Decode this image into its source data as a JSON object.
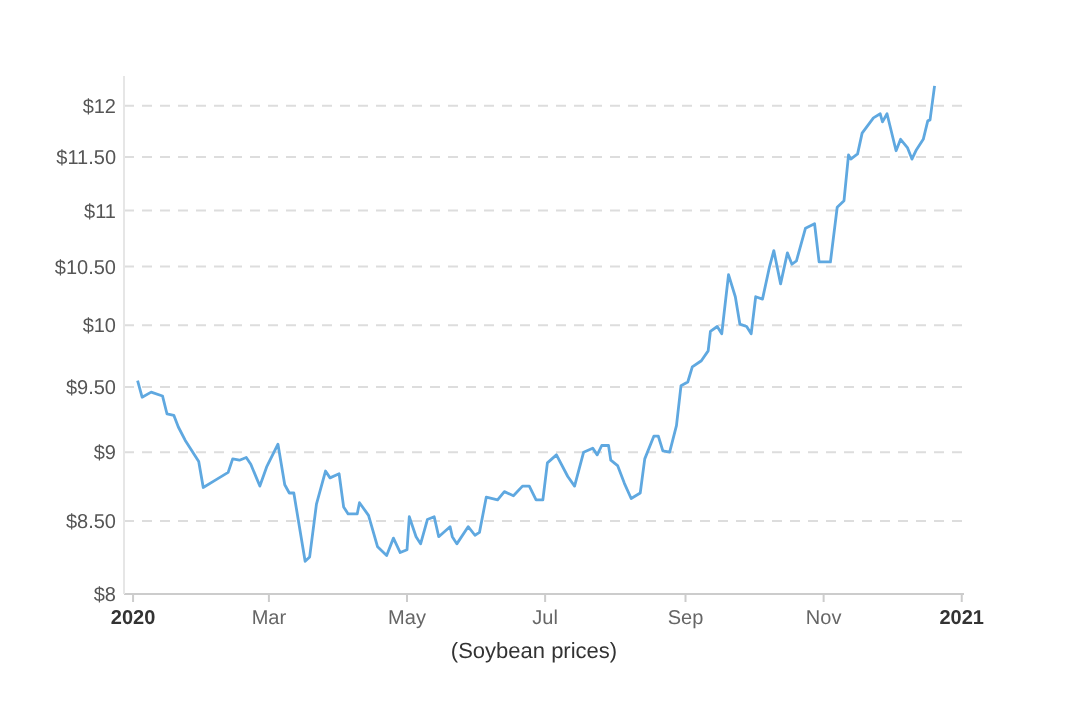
{
  "chart_data": {
    "type": "line",
    "x": [
      "2020-01-03",
      "2020-01-05",
      "2020-01-09",
      "2020-01-14",
      "2020-01-16",
      "2020-01-19",
      "2020-01-21",
      "2020-01-24",
      "2020-01-30",
      "2020-02-01",
      "2020-02-06",
      "2020-02-12",
      "2020-02-14",
      "2020-02-17",
      "2020-02-20",
      "2020-02-22",
      "2020-02-26",
      "2020-02-29",
      "2020-03-05",
      "2020-03-08",
      "2020-03-10",
      "2020-03-12",
      "2020-03-17",
      "2020-03-19",
      "2020-03-22",
      "2020-03-26",
      "2020-03-28",
      "2020-04-01",
      "2020-04-03",
      "2020-04-05",
      "2020-04-09",
      "2020-04-10",
      "2020-04-14",
      "2020-04-18",
      "2020-04-22",
      "2020-04-25",
      "2020-04-28",
      "2020-05-01",
      "2020-05-02",
      "2020-05-05",
      "2020-05-07",
      "2020-05-10",
      "2020-05-13",
      "2020-05-15",
      "2020-05-20",
      "2020-05-21",
      "2020-05-23",
      "2020-05-28",
      "2020-05-31",
      "2020-06-02",
      "2020-06-05",
      "2020-06-10",
      "2020-06-13",
      "2020-06-17",
      "2020-06-21",
      "2020-06-24",
      "2020-06-27",
      "2020-06-30",
      "2020-07-02",
      "2020-07-06",
      "2020-07-11",
      "2020-07-14",
      "2020-07-18",
      "2020-07-22",
      "2020-07-24",
      "2020-07-26",
      "2020-07-29",
      "2020-07-30",
      "2020-08-02",
      "2020-08-05",
      "2020-08-08",
      "2020-08-12",
      "2020-08-14",
      "2020-08-18",
      "2020-08-20",
      "2020-08-22",
      "2020-08-25",
      "2020-08-28",
      "2020-08-30",
      "2020-09-02",
      "2020-09-04",
      "2020-09-08",
      "2020-09-11",
      "2020-09-12",
      "2020-09-15",
      "2020-09-17",
      "2020-09-20",
      "2020-09-23",
      "2020-09-25",
      "2020-09-28",
      "2020-09-30",
      "2020-10-02",
      "2020-10-05",
      "2020-10-08",
      "2020-10-10",
      "2020-10-13",
      "2020-10-16",
      "2020-10-18",
      "2020-10-20",
      "2020-10-24",
      "2020-10-28",
      "2020-10-30",
      "2020-11-02",
      "2020-11-04",
      "2020-11-07",
      "2020-11-10",
      "2020-11-12",
      "2020-11-13",
      "2020-11-16",
      "2020-11-18",
      "2020-11-23",
      "2020-11-26",
      "2020-11-27",
      "2020-11-29",
      "2020-12-03",
      "2020-12-05",
      "2020-12-08",
      "2020-12-10",
      "2020-12-12",
      "2020-12-15",
      "2020-12-17",
      "2020-12-18",
      "2020-12-20"
    ],
    "series": [
      {
        "color": "#5fa8e0",
        "values": [
          9.55,
          9.42,
          9.46,
          9.43,
          9.29,
          9.28,
          9.19,
          9.09,
          8.93,
          8.74,
          8.79,
          8.85,
          8.95,
          8.94,
          8.96,
          8.91,
          8.75,
          8.89,
          9.06,
          8.76,
          8.7,
          8.7,
          8.22,
          8.25,
          8.62,
          8.86,
          8.81,
          8.84,
          8.6,
          8.55,
          8.55,
          8.63,
          8.54,
          8.32,
          8.26,
          8.38,
          8.28,
          8.3,
          8.53,
          8.39,
          8.34,
          8.51,
          8.53,
          8.39,
          8.46,
          8.39,
          8.34,
          8.46,
          8.4,
          8.42,
          8.67,
          8.65,
          8.71,
          8.68,
          8.75,
          8.75,
          8.65,
          8.65,
          8.92,
          8.98,
          8.82,
          8.75,
          9.0,
          9.03,
          8.98,
          9.05,
          9.05,
          8.94,
          8.9,
          8.77,
          8.66,
          8.7,
          8.95,
          9.12,
          9.12,
          9.01,
          9.0,
          9.2,
          9.51,
          9.54,
          9.66,
          9.71,
          9.79,
          9.95,
          9.99,
          9.93,
          10.43,
          10.24,
          10.01,
          9.99,
          9.93,
          10.24,
          10.22,
          10.49,
          10.64,
          10.35,
          10.62,
          10.52,
          10.55,
          10.84,
          10.88,
          10.54,
          10.54,
          10.54,
          11.03,
          11.09,
          11.52,
          11.48,
          11.53,
          11.73,
          11.88,
          11.92,
          11.84,
          11.92,
          11.56,
          11.67,
          11.59,
          11.48,
          11.57,
          11.67,
          11.85,
          11.86,
          12.2
        ]
      }
    ],
    "xlim": [
      "2019-12-28",
      "2021-01-02"
    ],
    "xticks": [
      {
        "value": "2020-01-01",
        "label": "2020"
      },
      {
        "value": "2020-03-01",
        "label": "Mar"
      },
      {
        "value": "2020-05-01",
        "label": "May"
      },
      {
        "value": "2020-07-01",
        "label": "Jul"
      },
      {
        "value": "2020-09-01",
        "label": "Sep"
      },
      {
        "value": "2020-11-01",
        "label": "Nov"
      },
      {
        "value": "2021-01-01",
        "label": "2021"
      }
    ],
    "ylim": [
      8,
      12.3
    ],
    "yticks": [
      {
        "value": 8,
        "label": "$8"
      },
      {
        "value": 8.5,
        "label": "$8.50"
      },
      {
        "value": 9,
        "label": "$9"
      },
      {
        "value": 9.5,
        "label": "$9.50"
      },
      {
        "value": 10,
        "label": "$10"
      },
      {
        "value": 10.5,
        "label": "$10.50"
      },
      {
        "value": 11,
        "label": "$11"
      },
      {
        "value": 11.5,
        "label": "$11.50"
      },
      {
        "value": 12,
        "label": "$12"
      }
    ],
    "log": "y",
    "grid": "y",
    "line_style": "solid",
    "annotations": [
      "(Soybean prices)"
    ]
  }
}
